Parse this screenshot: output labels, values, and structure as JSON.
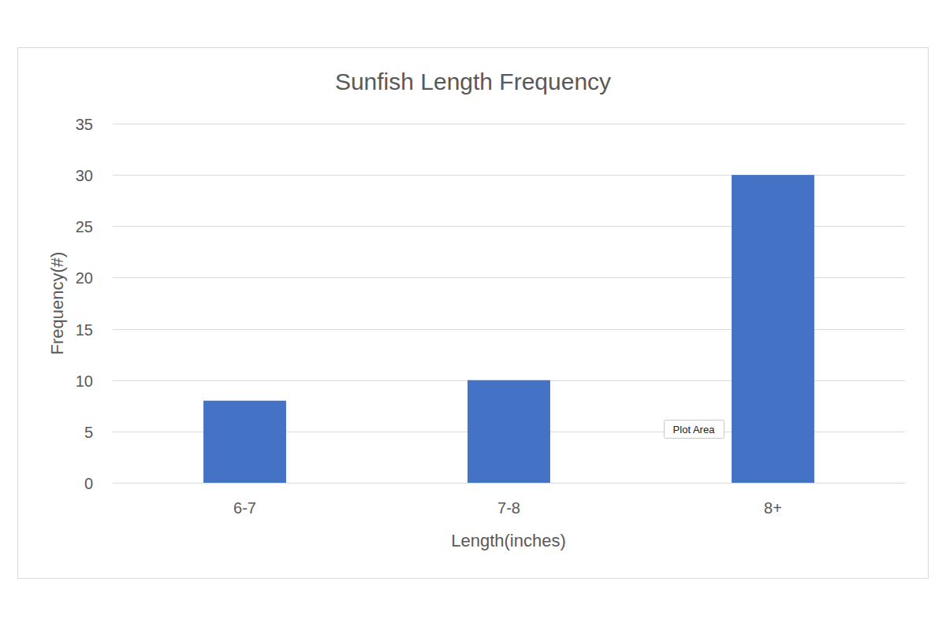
{
  "chart_data": {
    "type": "bar",
    "title": "Sunfish Length Frequency",
    "x_label": "Length(inches)",
    "y_label": "Frequency(#)",
    "categories": [
      "6-7",
      "7-8",
      "8+"
    ],
    "values": [
      8,
      10,
      30
    ],
    "color": "#4472c4",
    "ylim": [
      0,
      35
    ],
    "yticks": [
      0,
      5,
      10,
      15,
      20,
      25,
      30,
      35
    ],
    "grid": true,
    "annotation": "Plot Area"
  }
}
